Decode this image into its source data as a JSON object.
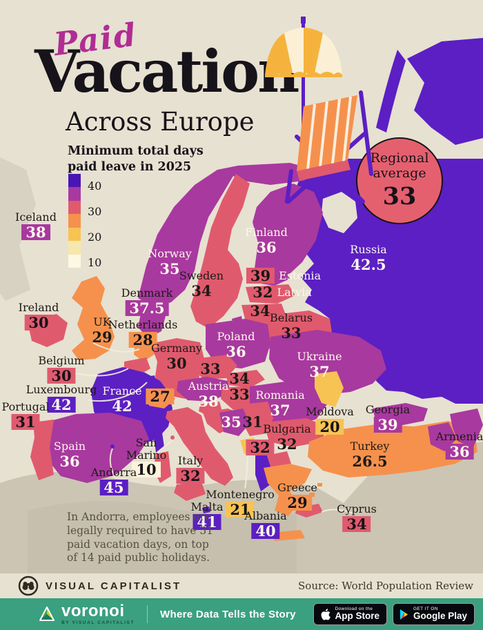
{
  "header": {
    "title_script": "Paid",
    "title_main": "Vacation",
    "title_sub": "Across Europe",
    "subtitle": "Minimum total days\npaid leave in 2025"
  },
  "regional_average": {
    "line1": "Regional",
    "line2": "average",
    "value": "33"
  },
  "footnote": "In Andorra, employees are legally required to have 31 paid vacation days, on top of 14 paid public holidays.",
  "footer": {
    "brand": "VISUAL CAPITALIST",
    "source": "Source: World Population Review"
  },
  "bottom_bar": {
    "wordmark": "voronoi",
    "byline": "BY VISUAL CAPITALIST",
    "tagline": "Where Data Tells the Story",
    "appstore": {
      "kicker": "Download on the",
      "name": "App Store"
    },
    "googleplay": {
      "kicker": "GET IT ON",
      "name": "Google Play"
    }
  },
  "chart_data": {
    "type": "heatmap",
    "title": "Paid Vacation Across Europe",
    "subtitle": "Minimum total days paid leave in 2025",
    "unit": "days",
    "regional_average": 33,
    "source": "World Population Review",
    "scale": {
      "min": 10,
      "max": 45,
      "ticks": [
        "40",
        "30",
        "20",
        "10"
      ],
      "colors": [
        "#4a15b5",
        "#a8399f",
        "#e05a6d",
        "#f5914d",
        "#f7c353",
        "#f6e7ad",
        "#fdf8e3"
      ]
    },
    "entries": [
      {
        "country": "Iceland",
        "value": "38"
      },
      {
        "country": "Ireland",
        "value": "30"
      },
      {
        "country": "UK",
        "value": "29"
      },
      {
        "country": "Norway",
        "value": "35"
      },
      {
        "country": "Sweden",
        "value": "34"
      },
      {
        "country": "Finland",
        "value": "36"
      },
      {
        "country": "Denmark",
        "value": "37.5"
      },
      {
        "country": "Netherlands",
        "value": "28"
      },
      {
        "country": "Estonia",
        "value": "39"
      },
      {
        "country": "Latvia",
        "value": "32"
      },
      {
        "country": "Lithuania",
        "value": "34",
        "name_shown": false
      },
      {
        "country": "Belarus",
        "value": "33"
      },
      {
        "country": "Russia",
        "value": "42.5"
      },
      {
        "country": "Belgium",
        "value": "30"
      },
      {
        "country": "Luxembourg",
        "value": "42"
      },
      {
        "country": "France",
        "value": "42"
      },
      {
        "country": "Germany",
        "value": "30"
      },
      {
        "country": "Poland",
        "value": "36"
      },
      {
        "country": "Czechia",
        "value": "33",
        "name_shown": false
      },
      {
        "country": "Slovakia",
        "value": "34",
        "name_shown": false
      },
      {
        "country": "Austria",
        "value": "38"
      },
      {
        "country": "Hungary",
        "value": "33",
        "name_shown": false
      },
      {
        "country": "Switzerland",
        "value": "27",
        "name_shown": false
      },
      {
        "country": "Ukraine",
        "value": "37"
      },
      {
        "country": "Romania",
        "value": "37"
      },
      {
        "country": "Moldova",
        "value": "20"
      },
      {
        "country": "Georgia",
        "value": "39"
      },
      {
        "country": "Armenia",
        "value": "36"
      },
      {
        "country": "Turkey",
        "value": "26.5"
      },
      {
        "country": "Bulgaria",
        "value": "32"
      },
      {
        "country": "Bosnia and Herzegovina",
        "value": "35",
        "name_shown": false
      },
      {
        "country": "Serbia",
        "value": "31",
        "name_shown": false
      },
      {
        "country": "North Macedonia",
        "value": "32",
        "name_shown": false
      },
      {
        "country": "Portugal",
        "value": "31"
      },
      {
        "country": "Spain",
        "value": "36"
      },
      {
        "country": "San Marino",
        "value": "10"
      },
      {
        "country": "Andorra",
        "value": "45"
      },
      {
        "country": "Italy",
        "value": "32"
      },
      {
        "country": "Montenegro",
        "value": "21"
      },
      {
        "country": "Malta",
        "value": "41"
      },
      {
        "country": "Albania",
        "value": "40"
      },
      {
        "country": "Greece",
        "value": "29"
      },
      {
        "country": "Cyprus",
        "value": "34"
      }
    ]
  }
}
